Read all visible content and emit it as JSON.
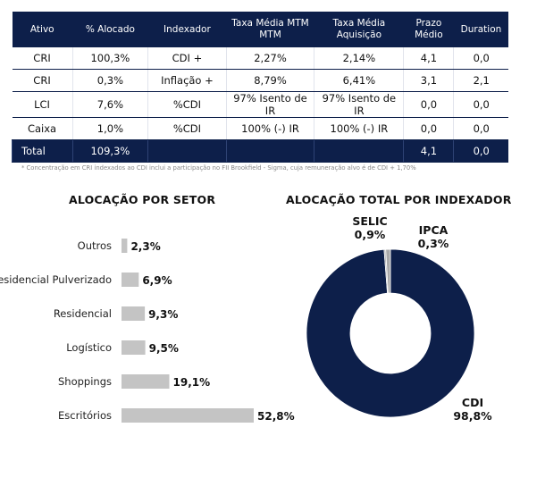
{
  "table": {
    "headers": [
      "Ativo",
      "% Alocado",
      "Indexador",
      "Taxa Média MTM MTM",
      "Taxa Média Aquisição",
      "Prazo Médio",
      "Duration"
    ],
    "rows": [
      [
        "CRI",
        "100,3%",
        "CDI +",
        "2,27%",
        "2,14%",
        "4,1",
        "0,0"
      ],
      [
        "CRI",
        "0,3%",
        "Inflação +",
        "8,79%",
        "6,41%",
        "3,1",
        "2,1"
      ],
      [
        "LCI",
        "7,6%",
        "%CDI",
        "97% Isento de IR",
        "97% Isento de IR",
        "0,0",
        "0,0"
      ],
      [
        "Caixa",
        "1,0%",
        "%CDI",
        "100% (-) IR",
        "100% (-) IR",
        "0,0",
        "0,0"
      ]
    ],
    "total": [
      "Total",
      "109,3%",
      "",
      "",
      "",
      "4,1",
      "0,0"
    ]
  },
  "footnote": "* Concentração em CRI indexados ao CDI inclui a participação no FII Brookfield - Sigma, cuja remuneração alvo é de CDI + 1,70%",
  "colors": {
    "navy": "#0d1f4a",
    "bar": "#c4c4c4",
    "slice_small": "#a9a9a9"
  },
  "chart_data": [
    {
      "type": "bar",
      "orientation": "horizontal",
      "title": "ALOCAÇÃO POR SETOR",
      "categories": [
        "Outros",
        "Residencial Pulverizado",
        "Residencial",
        "Logístico",
        "Shoppings",
        "Escritórios"
      ],
      "values": [
        2.3,
        6.9,
        9.3,
        9.5,
        19.1,
        52.8
      ],
      "value_labels": [
        "2,3%",
        "6,9%",
        "9,3%",
        "9,5%",
        "19,1%",
        "52,8%"
      ],
      "xlim": [
        0,
        52.8
      ],
      "grid": false
    },
    {
      "type": "pie",
      "donut": true,
      "title": "ALOCAÇÃO TOTAL POR INDEXADOR",
      "slices": [
        {
          "name": "CDI",
          "value": 98.8,
          "label": "98,8%",
          "color": "#0d1f4a"
        },
        {
          "name": "IPCA",
          "value": 0.3,
          "label": "0,3%",
          "color": "#a9a9a9"
        },
        {
          "name": "SELIC",
          "value": 0.9,
          "label": "0,9%",
          "color": "#a9a9a9"
        }
      ]
    }
  ]
}
